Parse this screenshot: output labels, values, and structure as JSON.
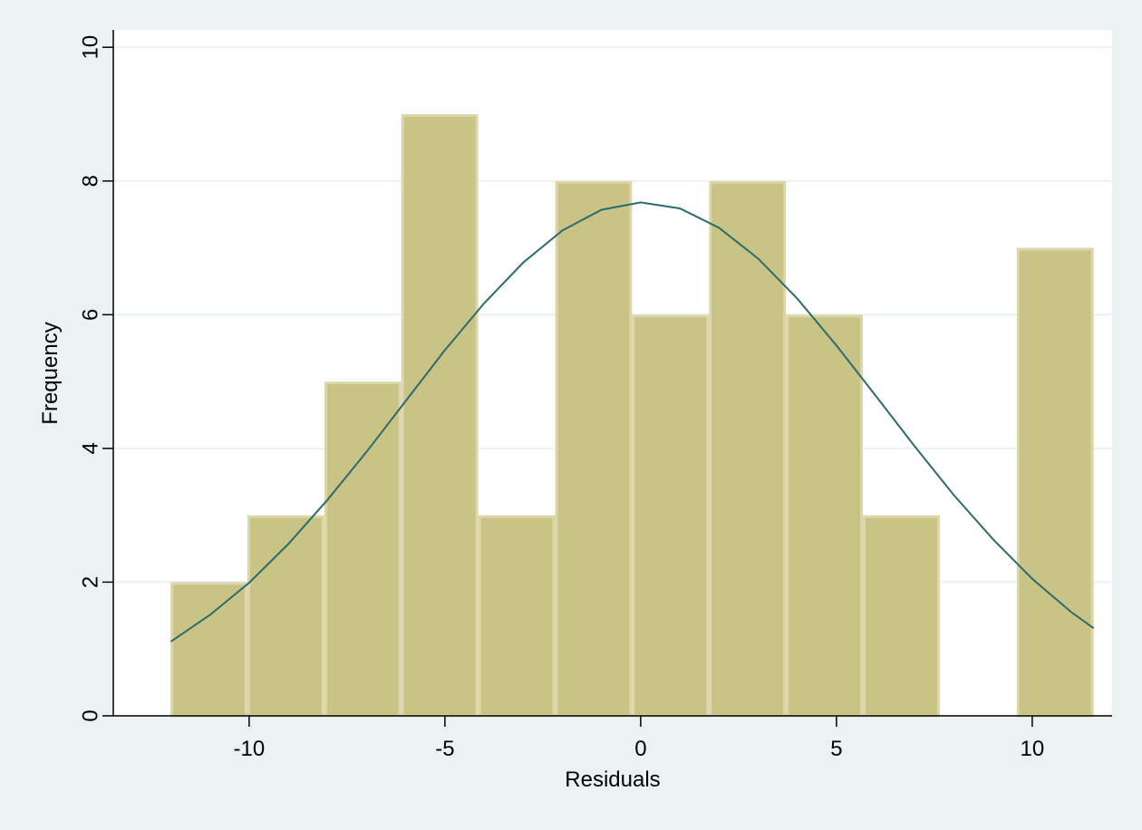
{
  "chart_data": {
    "type": "histogram",
    "x_label": "Residuals",
    "y_label": "Frequency",
    "bins": [
      -12.01,
      -10.045,
      -8.08,
      -6.115,
      -4.15,
      -2.185,
      -0.22,
      1.745,
      3.71,
      5.675,
      7.64,
      9.605,
      11.57
    ],
    "values": [
      2,
      3,
      5,
      9,
      3,
      8,
      6,
      8,
      6,
      3,
      0,
      7
    ],
    "color": "#cac386",
    "edge_color": "#dcd7ab",
    "curve": {
      "color": "#2c6b6c",
      "x": [
        -12,
        -11,
        -10,
        -9,
        -8,
        -7,
        -6,
        -5,
        -4,
        -3,
        -2,
        -1,
        0,
        1,
        2,
        3,
        4,
        5,
        6,
        7,
        8,
        9,
        10,
        11,
        11.57
      ],
      "values": [
        1.11,
        1.51,
        1.99,
        2.57,
        3.23,
        3.95,
        4.71,
        5.47,
        6.17,
        6.78,
        7.26,
        7.57,
        7.68,
        7.59,
        7.3,
        6.84,
        6.24,
        5.54,
        4.79,
        4.03,
        3.3,
        2.64,
        2.05,
        1.55,
        1.31
      ]
    },
    "xlim": [
      -13.47,
      12.04
    ],
    "ylim": [
      0,
      10.26
    ],
    "xticks": [
      -10,
      -5,
      0,
      5,
      10
    ],
    "yticks": [
      0,
      2,
      4,
      6,
      8,
      10
    ],
    "grid": true
  }
}
